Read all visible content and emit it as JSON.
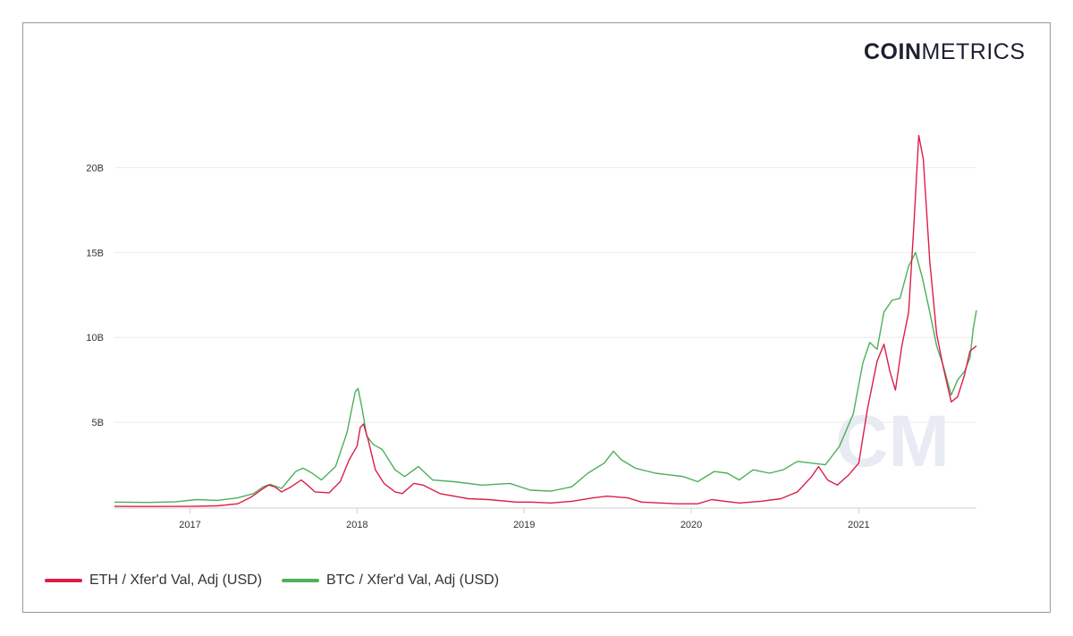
{
  "logo": {
    "bold": "COIN",
    "light": "METRICS"
  },
  "watermark": "CM",
  "chart_data": {
    "type": "line",
    "title": "",
    "xlabel": "",
    "ylabel": "",
    "x_range": [
      "2016-07-20",
      "2021-09-15"
    ],
    "ylim": [
      0,
      22500000000
    ],
    "y_ticks": [
      {
        "value": 5000000000,
        "label": "5B"
      },
      {
        "value": 10000000000,
        "label": "10B"
      },
      {
        "value": 15000000000,
        "label": "15B"
      },
      {
        "value": 20000000000,
        "label": "20B"
      }
    ],
    "x_ticks": [
      {
        "date": "2017-01-01",
        "label": "2017"
      },
      {
        "date": "2018-01-01",
        "label": "2018"
      },
      {
        "date": "2019-01-01",
        "label": "2019"
      },
      {
        "date": "2020-01-01",
        "label": "2020"
      },
      {
        "date": "2021-01-01",
        "label": "2021"
      }
    ],
    "grid": true,
    "legend_position": "bottom-left",
    "series": [
      {
        "name": "ETH / Xfer'd Val, Adj (USD)",
        "color": "#dc1e4a",
        "points": [
          [
            "2016-07-20",
            0.05
          ],
          [
            "2016-10-01",
            0.04
          ],
          [
            "2017-01-01",
            0.05
          ],
          [
            "2017-03-01",
            0.08
          ],
          [
            "2017-04-15",
            0.2
          ],
          [
            "2017-05-15",
            0.6
          ],
          [
            "2017-06-10",
            1.1
          ],
          [
            "2017-06-22",
            1.3
          ],
          [
            "2017-07-05",
            1.2
          ],
          [
            "2017-07-20",
            0.9
          ],
          [
            "2017-08-10",
            1.2
          ],
          [
            "2017-09-01",
            1.6
          ],
          [
            "2017-09-15",
            1.3
          ],
          [
            "2017-10-01",
            0.9
          ],
          [
            "2017-11-01",
            0.85
          ],
          [
            "2017-11-25",
            1.5
          ],
          [
            "2017-12-15",
            2.8
          ],
          [
            "2018-01-01",
            3.6
          ],
          [
            "2018-01-08",
            4.7
          ],
          [
            "2018-01-15",
            4.9
          ],
          [
            "2018-01-25",
            4.0
          ],
          [
            "2018-02-10",
            2.2
          ],
          [
            "2018-03-01",
            1.4
          ],
          [
            "2018-03-25",
            0.9
          ],
          [
            "2018-04-10",
            0.8
          ],
          [
            "2018-05-05",
            1.4
          ],
          [
            "2018-05-25",
            1.3
          ],
          [
            "2018-07-01",
            0.8
          ],
          [
            "2018-09-01",
            0.5
          ],
          [
            "2018-10-15",
            0.45
          ],
          [
            "2018-12-15",
            0.3
          ],
          [
            "2019-01-15",
            0.3
          ],
          [
            "2019-03-01",
            0.25
          ],
          [
            "2019-04-15",
            0.35
          ],
          [
            "2019-06-01",
            0.55
          ],
          [
            "2019-07-01",
            0.65
          ],
          [
            "2019-08-15",
            0.55
          ],
          [
            "2019-09-15",
            0.3
          ],
          [
            "2019-12-01",
            0.2
          ],
          [
            "2020-01-15",
            0.2
          ],
          [
            "2020-02-15",
            0.45
          ],
          [
            "2020-03-15",
            0.35
          ],
          [
            "2020-04-15",
            0.25
          ],
          [
            "2020-06-01",
            0.35
          ],
          [
            "2020-07-15",
            0.5
          ],
          [
            "2020-08-20",
            0.9
          ],
          [
            "2020-09-20",
            1.8
          ],
          [
            "2020-10-05",
            2.4
          ],
          [
            "2020-10-25",
            1.6
          ],
          [
            "2020-11-15",
            1.3
          ],
          [
            "2020-12-10",
            1.9
          ],
          [
            "2021-01-01",
            2.6
          ],
          [
            "2021-01-20",
            5.8
          ],
          [
            "2021-02-10",
            8.6
          ],
          [
            "2021-02-25",
            9.6
          ],
          [
            "2021-03-10",
            8.0
          ],
          [
            "2021-03-22",
            6.9
          ],
          [
            "2021-04-05",
            9.5
          ],
          [
            "2021-04-20",
            11.5
          ],
          [
            "2021-05-01",
            16.5
          ],
          [
            "2021-05-12",
            21.9
          ],
          [
            "2021-05-22",
            20.5
          ],
          [
            "2021-06-05",
            14.5
          ],
          [
            "2021-06-20",
            10.2
          ],
          [
            "2021-07-05",
            8.2
          ],
          [
            "2021-07-22",
            6.2
          ],
          [
            "2021-08-05",
            6.5
          ],
          [
            "2021-08-20",
            7.8
          ],
          [
            "2021-09-01",
            9.2
          ],
          [
            "2021-09-15",
            9.5
          ]
        ]
      },
      {
        "name": "BTC / Xfer'd Val, Adj (USD)",
        "color": "#4cb05a",
        "points": [
          [
            "2016-07-20",
            0.3
          ],
          [
            "2016-10-01",
            0.28
          ],
          [
            "2016-12-01",
            0.32
          ],
          [
            "2017-01-15",
            0.45
          ],
          [
            "2017-03-01",
            0.4
          ],
          [
            "2017-04-15",
            0.55
          ],
          [
            "2017-05-20",
            0.8
          ],
          [
            "2017-06-10",
            1.2
          ],
          [
            "2017-06-25",
            1.35
          ],
          [
            "2017-07-20",
            1.1
          ],
          [
            "2017-08-20",
            2.1
          ],
          [
            "2017-09-05",
            2.3
          ],
          [
            "2017-09-25",
            2.0
          ],
          [
            "2017-10-15",
            1.6
          ],
          [
            "2017-11-15",
            2.4
          ],
          [
            "2017-12-10",
            4.4
          ],
          [
            "2017-12-28",
            6.8
          ],
          [
            "2018-01-03",
            7.0
          ],
          [
            "2018-01-12",
            5.8
          ],
          [
            "2018-01-22",
            4.2
          ],
          [
            "2018-02-05",
            3.7
          ],
          [
            "2018-02-25",
            3.4
          ],
          [
            "2018-03-25",
            2.2
          ],
          [
            "2018-04-15",
            1.8
          ],
          [
            "2018-05-15",
            2.4
          ],
          [
            "2018-06-15",
            1.6
          ],
          [
            "2018-08-01",
            1.5
          ],
          [
            "2018-10-01",
            1.3
          ],
          [
            "2018-12-01",
            1.4
          ],
          [
            "2019-01-15",
            1.0
          ],
          [
            "2019-03-01",
            0.95
          ],
          [
            "2019-04-15",
            1.2
          ],
          [
            "2019-05-20",
            2.0
          ],
          [
            "2019-06-25",
            2.6
          ],
          [
            "2019-07-15",
            3.3
          ],
          [
            "2019-08-01",
            2.8
          ],
          [
            "2019-09-01",
            2.3
          ],
          [
            "2019-10-15",
            2.0
          ],
          [
            "2019-11-15",
            1.9
          ],
          [
            "2019-12-15",
            1.8
          ],
          [
            "2020-01-15",
            1.5
          ],
          [
            "2020-02-20",
            2.1
          ],
          [
            "2020-03-20",
            2.0
          ],
          [
            "2020-04-15",
            1.6
          ],
          [
            "2020-05-15",
            2.2
          ],
          [
            "2020-06-20",
            2.0
          ],
          [
            "2020-07-20",
            2.2
          ],
          [
            "2020-08-20",
            2.7
          ],
          [
            "2020-09-20",
            2.6
          ],
          [
            "2020-10-20",
            2.5
          ],
          [
            "2020-11-20",
            3.6
          ],
          [
            "2020-12-20",
            5.5
          ],
          [
            "2021-01-10",
            8.5
          ],
          [
            "2021-01-25",
            9.7
          ],
          [
            "2021-02-10",
            9.3
          ],
          [
            "2021-02-25",
            11.5
          ],
          [
            "2021-03-15",
            12.2
          ],
          [
            "2021-04-01",
            12.3
          ],
          [
            "2021-04-20",
            14.2
          ],
          [
            "2021-05-05",
            15.0
          ],
          [
            "2021-05-20",
            13.5
          ],
          [
            "2021-06-05",
            11.5
          ],
          [
            "2021-06-20",
            9.5
          ],
          [
            "2021-07-05",
            8.3
          ],
          [
            "2021-07-22",
            6.6
          ],
          [
            "2021-08-05",
            7.5
          ],
          [
            "2021-08-20",
            8.0
          ],
          [
            "2021-09-01",
            8.8
          ],
          [
            "2021-09-08",
            10.5
          ],
          [
            "2021-09-15",
            11.6
          ]
        ]
      }
    ]
  }
}
